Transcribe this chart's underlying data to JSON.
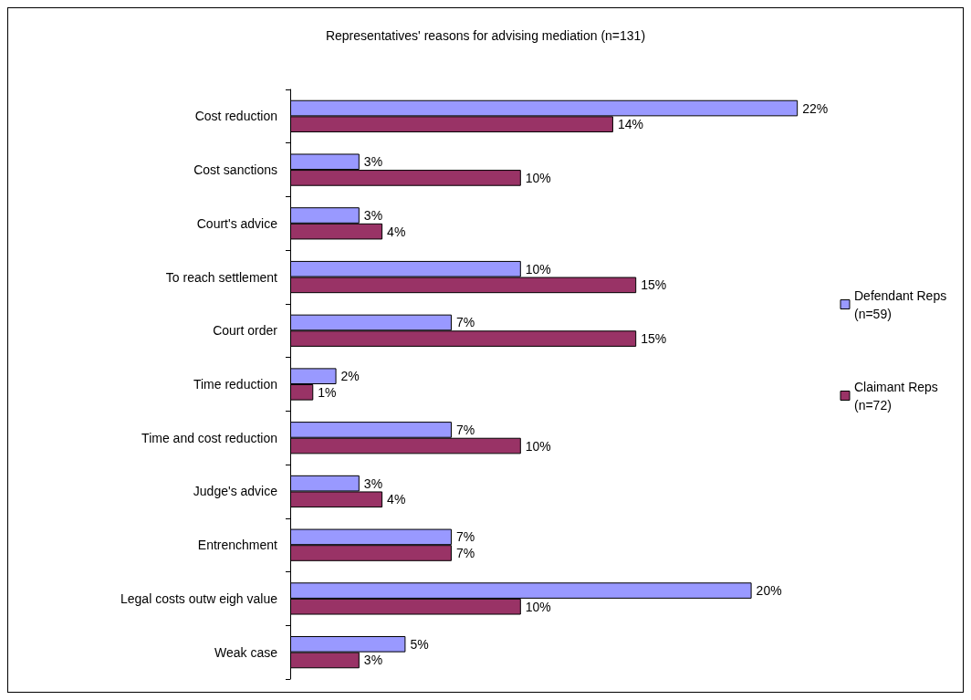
{
  "chart_data": {
    "type": "bar",
    "orientation": "horizontal",
    "title": "Representatives' reasons for advising mediation (n=131)",
    "categories": [
      "Cost reduction",
      "Cost sanctions",
      "Court's advice",
      "To reach settlement",
      "Court order",
      "Time reduction",
      "Time and cost reduction",
      "Judge's advice",
      "Entrenchment",
      "Legal costs outw eigh value",
      "Weak case"
    ],
    "series": [
      {
        "name": "Defendant Reps (n=59)",
        "color": "#9999ff",
        "values": [
          22,
          3,
          3,
          10,
          7,
          2,
          7,
          3,
          7,
          20,
          5
        ],
        "value_labels": [
          "22%",
          "3%",
          "3%",
          "10%",
          "7%",
          "2%",
          "7%",
          "3%",
          "7%",
          "20%",
          "5%"
        ]
      },
      {
        "name": "Claimant Reps (n=72)",
        "color": "#993366",
        "values": [
          14,
          10,
          4,
          15,
          15,
          1,
          10,
          4,
          7,
          10,
          3
        ],
        "value_labels": [
          "14%",
          "10%",
          "4%",
          "15%",
          "15%",
          "1%",
          "10%",
          "4%",
          "7%",
          "10%",
          "3%"
        ]
      }
    ],
    "legend": "right"
  }
}
